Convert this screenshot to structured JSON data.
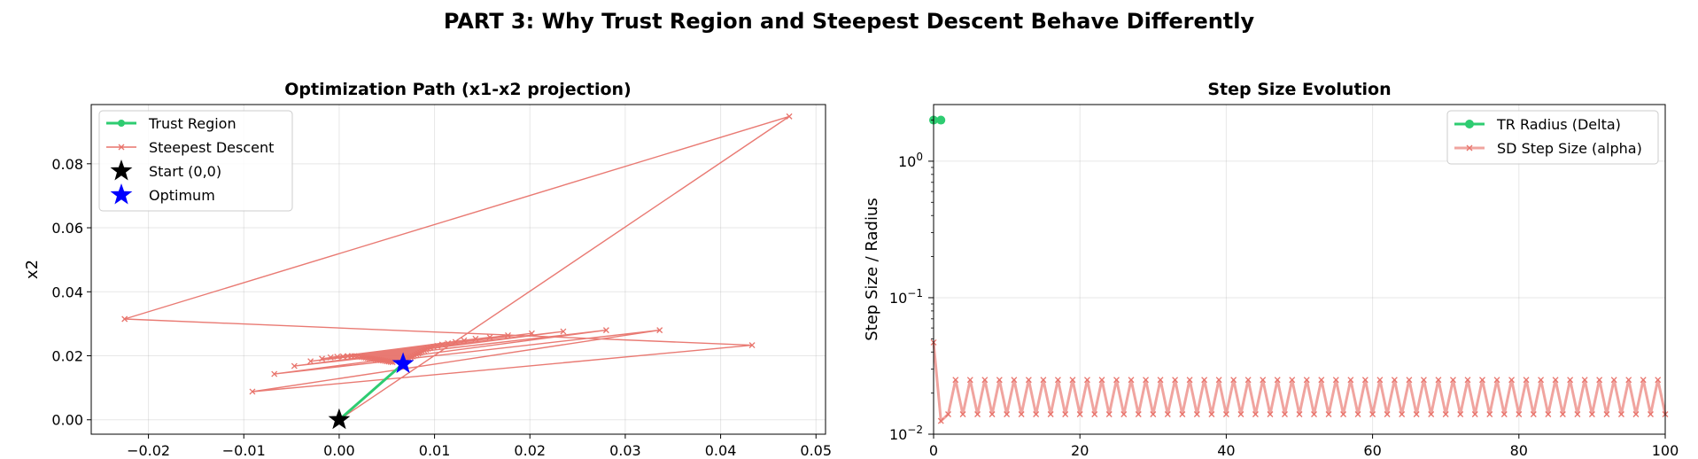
{
  "figure": {
    "title": "PART 3: Why Trust Region and Steepest Descent Behave Differently"
  },
  "colors": {
    "trust_region": "#2ecc71",
    "steepest_descent": "#e8736b",
    "start": "#000000",
    "optimum": "#0000ff"
  },
  "chart_data": [
    {
      "type": "line",
      "title": "Optimization Path (x1-x2 projection)",
      "xlabel": "",
      "ylabel": "x2",
      "xlim": [
        -0.026,
        0.051
      ],
      "ylim": [
        -0.0045,
        0.0985
      ],
      "xticks": [
        -0.02,
        -0.01,
        0.0,
        0.01,
        0.02,
        0.03,
        0.04,
        0.05
      ],
      "xtick_labels": [
        "−0.02",
        "−0.01",
        "0.00",
        "0.01",
        "0.02",
        "0.03",
        "0.04",
        "0.05"
      ],
      "yticks": [
        0.0,
        0.02,
        0.04,
        0.06,
        0.08
      ],
      "ytick_labels": [
        "0.00",
        "0.02",
        "0.04",
        "0.06",
        "0.08"
      ],
      "grid": true,
      "legend": "top-left",
      "series": [
        {
          "name": "Trust Region",
          "marker": "circle",
          "x": [
            0.0,
            0.0067
          ],
          "y": [
            0.0,
            0.0175
          ]
        },
        {
          "name": "Steepest Descent",
          "marker": "x",
          "x": [
            0.0,
            0.0472,
            -0.0225,
            0.0433,
            -0.0091,
            0.0336,
            -0.0068,
            0.028,
            -0.0047,
            0.0235,
            -0.003,
            0.0202,
            -0.0018,
            0.0177,
            -0.0009,
            0.0158,
            -0.0002,
            0.0143,
            0.0004,
            0.0131,
            0.0009,
            0.0122,
            0.0013,
            0.0114,
            0.0016,
            0.0108,
            0.0019,
            0.0103,
            0.0022,
            0.0099,
            0.0024,
            0.0096,
            0.0026,
            0.0093,
            0.0028,
            0.0091,
            0.003,
            0.0089,
            0.0032,
            0.0087,
            0.0034,
            0.0085,
            0.0036,
            0.0083,
            0.0038,
            0.0081,
            0.004,
            0.0079,
            0.0042,
            0.0077,
            0.0044,
            0.0075,
            0.0046,
            0.0073,
            0.0048,
            0.0071,
            0.005,
            0.007,
            0.0052,
            0.0069,
            0.0054,
            0.0068,
            0.0056,
            0.0067
          ],
          "y": [
            0.0,
            0.0948,
            0.0315,
            0.0233,
            0.0088,
            0.028,
            0.0143,
            0.028,
            0.0168,
            0.0276,
            0.0183,
            0.027,
            0.0191,
            0.0264,
            0.0195,
            0.0258,
            0.0197,
            0.0253,
            0.0198,
            0.0248,
            0.0199,
            0.0243,
            0.0199,
            0.0239,
            0.0199,
            0.0235,
            0.0198,
            0.0231,
            0.0197,
            0.0228,
            0.0196,
            0.0225,
            0.0195,
            0.0222,
            0.0194,
            0.0219,
            0.0193,
            0.0216,
            0.0192,
            0.0213,
            0.0191,
            0.021,
            0.019,
            0.0207,
            0.0189,
            0.0204,
            0.0188,
            0.0201,
            0.0187,
            0.0198,
            0.0186,
            0.0195,
            0.0185,
            0.0192,
            0.0184,
            0.0189,
            0.0183,
            0.0186,
            0.0182,
            0.0183,
            0.0181,
            0.018,
            0.018,
            0.0177
          ]
        },
        {
          "name": "Start (0,0)",
          "marker": "star",
          "x": [
            0.0
          ],
          "y": [
            0.0
          ]
        },
        {
          "name": "Optimum",
          "marker": "star",
          "x": [
            0.0067
          ],
          "y": [
            0.0175
          ]
        }
      ]
    },
    {
      "type": "line",
      "title": "Step Size Evolution",
      "xlabel": "",
      "ylabel": "Step Size / Radius",
      "xlim": [
        0,
        100
      ],
      "yscale": "log",
      "ylim": [
        0.01,
        2.6
      ],
      "xticks": [
        0,
        20,
        40,
        60,
        80,
        100
      ],
      "xtick_labels": [
        "0",
        "20",
        "40",
        "60",
        "80",
        "100"
      ],
      "yticks": [
        0.01,
        0.1,
        1
      ],
      "ytick_labels": [
        {
          "base": "10",
          "exp": "−2"
        },
        {
          "base": "10",
          "exp": "−1"
        },
        {
          "base": "10",
          "exp": "0"
        }
      ],
      "grid": true,
      "legend": "top-right",
      "series": [
        {
          "name": "TR Radius (Delta)",
          "marker": "circle",
          "x": [
            0,
            1
          ],
          "y": [
            2.0,
            2.0
          ]
        },
        {
          "name": "SD Step Size (alpha)",
          "marker": "x",
          "period_after": 3,
          "odd_high": 0.025,
          "even_low": 0.014,
          "first": [
            0.047,
            0.0125
          ],
          "n": 101
        }
      ]
    }
  ]
}
